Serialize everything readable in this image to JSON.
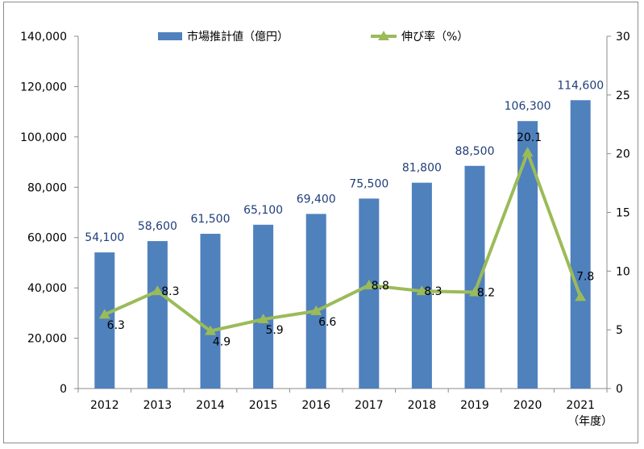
{
  "chart_data": {
    "type": "bar",
    "categories": [
      "2012",
      "2013",
      "2014",
      "2015",
      "2016",
      "2017",
      "2018",
      "2019",
      "2020",
      "2021"
    ],
    "series": [
      {
        "name": "市場推計値（億円）",
        "type": "bar",
        "axis": "left",
        "color": "#4f81bd",
        "values": [
          54100,
          58600,
          61500,
          65100,
          69400,
          75500,
          81800,
          88500,
          106300,
          114600
        ],
        "labels": [
          "54,100",
          "58,600",
          "61,500",
          "65,100",
          "69,400",
          "75,500",
          "81,800",
          "88,500",
          "106,300",
          "114,600"
        ]
      },
      {
        "name": "伸び率（%）",
        "type": "line",
        "axis": "right",
        "color": "#9bbb59",
        "marker": "triangle",
        "values": [
          6.3,
          8.3,
          4.9,
          5.9,
          6.6,
          8.8,
          8.3,
          8.2,
          20.1,
          7.8
        ],
        "labels": [
          "6.3",
          "8.3",
          "4.9",
          "5.9",
          "6.6",
          "8.8",
          "8.3",
          "8.2",
          "20.1",
          "7.8"
        ]
      }
    ],
    "y_left": {
      "min": 0,
      "max": 140000,
      "ticks": [
        "0",
        "20,000",
        "40,000",
        "60,000",
        "80,000",
        "100,000",
        "120,000",
        "140,000"
      ]
    },
    "y_right": {
      "min": 0,
      "max": 30,
      "ticks": [
        "0",
        "5",
        "10",
        "15",
        "20",
        "25",
        "30"
      ]
    },
    "xunit": "（年度）",
    "grid": false,
    "legend_position": "top"
  }
}
